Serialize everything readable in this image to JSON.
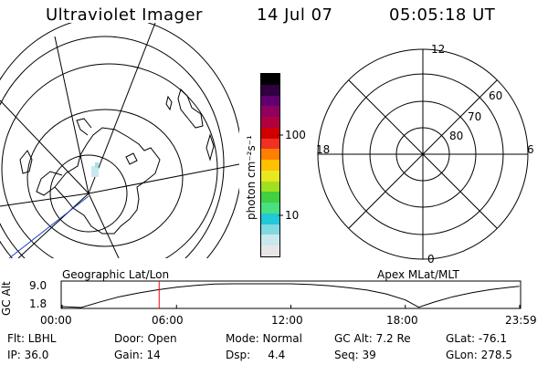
{
  "header": {
    "instrument": "Ultraviolet Imager",
    "date": "14 Jul 07",
    "time": "05:05:18 UT"
  },
  "colorbar": {
    "unit_label": "photon cm⁻²s⁻¹",
    "ticks": [
      {
        "label": "100",
        "value": 100
      },
      {
        "label": "10",
        "value": 10
      }
    ],
    "colors": [
      "#e6e6e6",
      "#c8e8ee",
      "#80d8e0",
      "#20c8d8",
      "#48e080",
      "#40d040",
      "#a0e020",
      "#e8e820",
      "#ffc000",
      "#ff8000",
      "#f03020",
      "#d00000",
      "#b00040",
      "#900060",
      "#600070",
      "#300040",
      "#000000"
    ]
  },
  "left_panel": {
    "label": "Geographic Lat/Lon"
  },
  "right_panel": {
    "label": "Apex MLat/MLT",
    "mlt_labels": {
      "top": "12",
      "right": "6",
      "bottom": "0",
      "left": "18"
    },
    "mlat_labels": [
      "60",
      "70",
      "80"
    ]
  },
  "chart_data": {
    "type": "line",
    "title": "",
    "ylabel": "GC Alt",
    "xlabel": "",
    "x_ticks": [
      "00:00",
      "06:00",
      "12:00",
      "18:00",
      "23:59"
    ],
    "y_ticks": [
      "9.0",
      "1.8"
    ],
    "xlim": [
      0,
      24
    ],
    "ylim": [
      1.8,
      9.0
    ],
    "series": [
      {
        "x": [
          0,
          1.0,
          2,
          3,
          4,
          5,
          6,
          7,
          8,
          9,
          10,
          11,
          12,
          13,
          14,
          15,
          16,
          17,
          18,
          18.7,
          19.5,
          20.5,
          21.5,
          22.5,
          23.5,
          23.98
        ],
        "values": [
          1.8,
          1.5,
          3.3,
          4.9,
          6.1,
          7.1,
          7.9,
          8.5,
          8.9,
          9.0,
          9.0,
          9.0,
          9.0,
          8.8,
          8.4,
          7.8,
          7.0,
          5.8,
          3.9,
          1.6,
          3.2,
          4.9,
          6.2,
          7.2,
          7.9,
          8.2
        ]
      }
    ],
    "markers": [
      {
        "x": 5.09,
        "color": "#ff0000"
      }
    ]
  },
  "info": {
    "flt": "Flt: LBHL",
    "door": "Door: Open",
    "mode": "Mode: Normal",
    "gc_alt": "GC Alt: 7.2 Re",
    "glat": "GLat: -76.1",
    "ip": "IP: 36.0",
    "gain": "Gain: 14",
    "dsp": "Dsp:     4.4",
    "seq": "Seq: 39",
    "glon": "GLon: 278.5"
  }
}
